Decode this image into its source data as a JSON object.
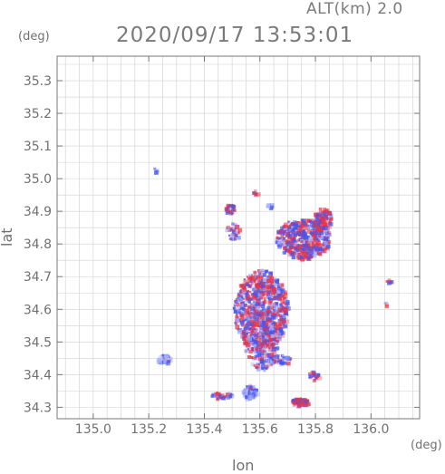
{
  "header": {
    "altitude_label": "ALT(km) 2.0",
    "datetime": "2020/09/17 13:53:01"
  },
  "axes": {
    "y_unit": "(deg)",
    "x_unit": "(deg)",
    "y_title": "lat",
    "x_title": "lon",
    "x_ticks": [
      "135.0",
      "135.2",
      "135.4",
      "135.6",
      "135.8",
      "136.0"
    ],
    "y_ticks": [
      "34.3",
      "34.4",
      "34.5",
      "34.6",
      "34.7",
      "34.8",
      "34.9",
      "35.0",
      "35.1",
      "35.2",
      "35.3"
    ]
  },
  "colors": {
    "frame": "#777777",
    "grid": "#cfcfcf",
    "positive": "#ee3344",
    "negative": "#4455ee",
    "neutral_blue": "#aab4ff"
  }
}
